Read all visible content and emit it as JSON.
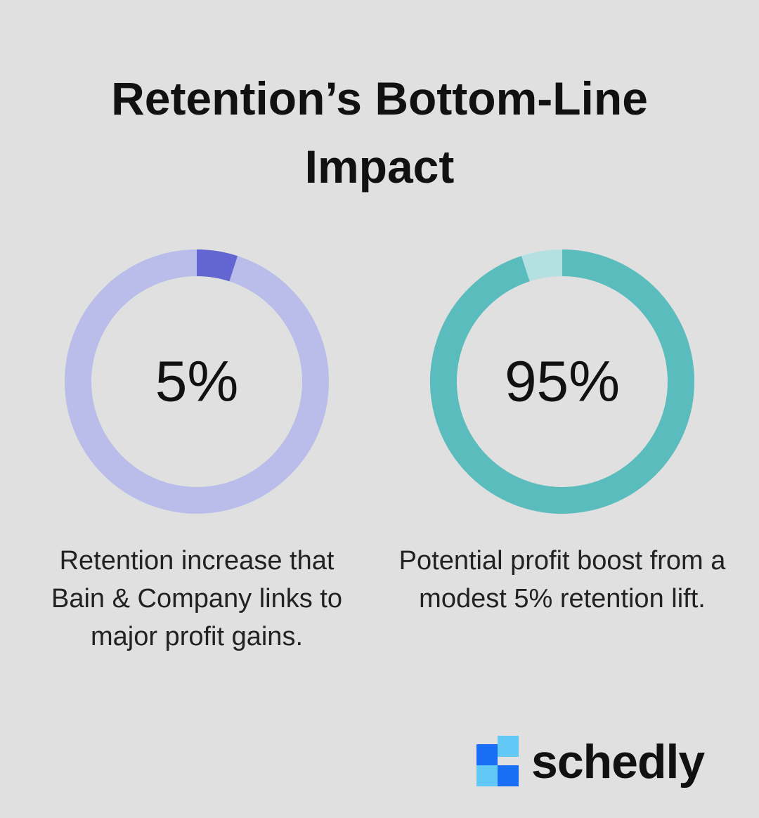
{
  "title": "Retention’s Bottom-Line Impact",
  "chart_data": [
    {
      "type": "donut",
      "values": [
        5
      ],
      "value_labels": [
        "5%"
      ],
      "ylim": [
        0,
        100
      ],
      "color": "#6366d1",
      "track_color": "#babdea",
      "caption": "Retention increase that Bain & Company links to major profit gains."
    },
    {
      "type": "donut",
      "values": [
        95
      ],
      "value_labels": [
        "95%"
      ],
      "ylim": [
        0,
        100
      ],
      "color": "#5bbcbe",
      "track_color": "#b5e0e2",
      "caption": "Potential profit boost from a modest 5% retention lift."
    }
  ],
  "logo": {
    "text": "schedly"
  }
}
